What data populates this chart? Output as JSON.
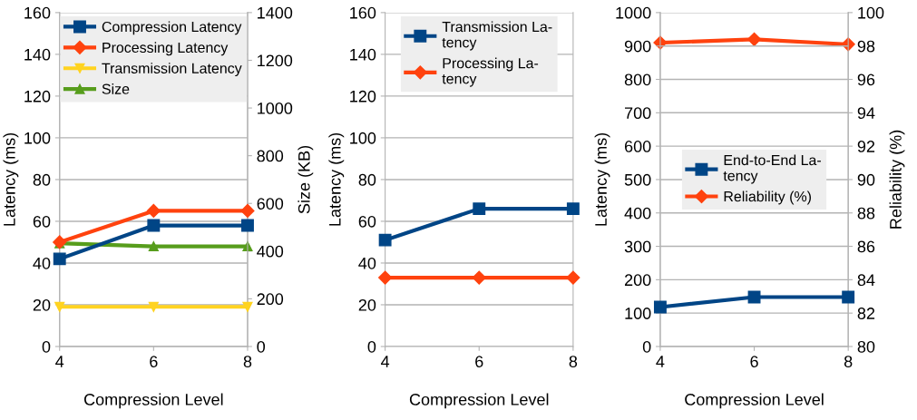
{
  "chart_data": [
    {
      "type": "line",
      "x": [
        4,
        6,
        8
      ],
      "xlabel": "Compression Level",
      "ylabel": "Latency (ms)",
      "y2label": "Size (KB)",
      "xlim": [
        4,
        8
      ],
      "xticks": [
        4,
        6,
        8
      ],
      "ylim": [
        0,
        160
      ],
      "yticks": [
        0,
        20,
        40,
        60,
        80,
        100,
        120,
        140,
        160
      ],
      "y2lim": [
        0,
        1400
      ],
      "y2ticks": [
        0,
        200,
        400,
        600,
        800,
        1000,
        1200,
        1400
      ],
      "grid": "y",
      "legend": "top",
      "series": [
        {
          "name": "Compression Latency",
          "color": "#004586",
          "marker": "square",
          "values": [
            42,
            58,
            58
          ]
        },
        {
          "name": "Processing Latency",
          "color": "#ff420e",
          "marker": "diamond",
          "values": [
            50,
            65,
            65
          ]
        },
        {
          "name": "Transmission Latency",
          "color": "#ffd320",
          "marker": "triangle_down",
          "values": [
            19,
            19,
            19
          ]
        },
        {
          "name": "Size",
          "color": "#579d1c",
          "marker": "triangle",
          "axis": "y2",
          "values": [
            433,
            420,
            420
          ]
        }
      ]
    },
    {
      "type": "line",
      "x": [
        4,
        6,
        8
      ],
      "xlabel": "Compression Level",
      "ylabel": "Latency (ms)",
      "xlim": [
        4,
        8
      ],
      "xticks": [
        4,
        6,
        8
      ],
      "ylim": [
        0,
        160
      ],
      "yticks": [
        0,
        20,
        40,
        60,
        80,
        100,
        120,
        140,
        160
      ],
      "grid": "y",
      "legend": "top",
      "series": [
        {
          "name": "Transmission La-\ntency",
          "color": "#004586",
          "marker": "square",
          "values": [
            51,
            66,
            66
          ]
        },
        {
          "name": "Processing La-\ntency",
          "color": "#ff420e",
          "marker": "diamond",
          "values": [
            33,
            33,
            33
          ]
        }
      ]
    },
    {
      "type": "line",
      "x": [
        4,
        6,
        8
      ],
      "xlabel": "Compression Level",
      "ylabel": "Latency (ms)",
      "y2label": "Reliability (%)",
      "xlim": [
        4,
        8
      ],
      "xticks": [
        4,
        6,
        8
      ],
      "ylim": [
        0,
        1000
      ],
      "yticks": [
        0,
        100,
        200,
        300,
        400,
        500,
        600,
        700,
        800,
        900,
        1000
      ],
      "y2lim": [
        80,
        100
      ],
      "y2ticks": [
        80,
        82,
        84,
        86,
        88,
        90,
        92,
        94,
        96,
        98,
        100
      ],
      "grid": "y",
      "legend": "center",
      "series": [
        {
          "name": "End-to-End La-\ntency",
          "color": "#004586",
          "marker": "square",
          "values": [
            118,
            148,
            148
          ]
        },
        {
          "name": "Reliability (%)",
          "color": "#ff420e",
          "marker": "diamond",
          "axis": "y2",
          "values": [
            98.2,
            98.4,
            98.1
          ]
        }
      ]
    }
  ]
}
